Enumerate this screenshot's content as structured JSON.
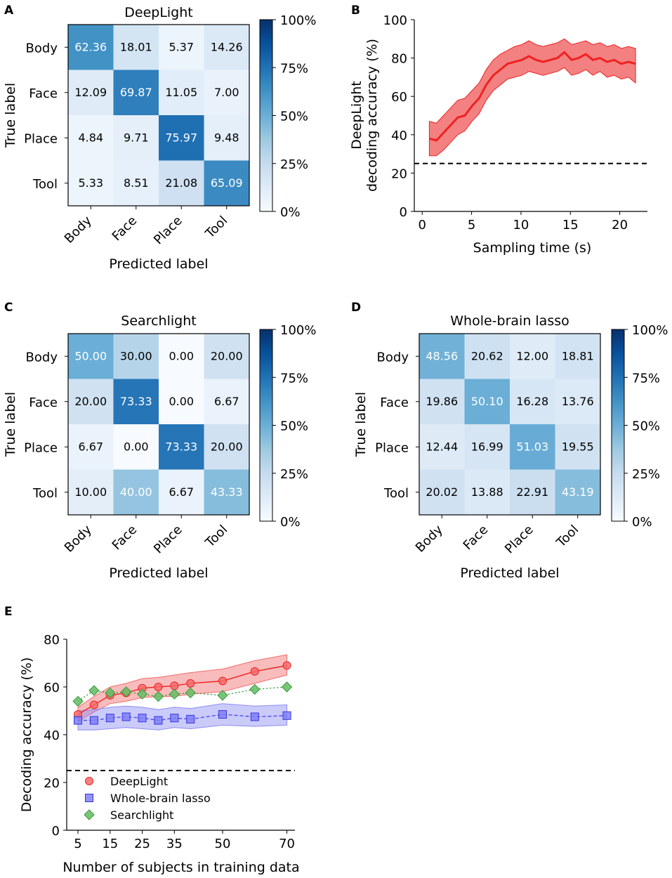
{
  "figure": {
    "panel_letters": [
      "A",
      "B",
      "C",
      "D",
      "E"
    ]
  },
  "colors": {
    "deeplight": "#ee2222",
    "deeplight_band": "#f26b6b",
    "lasso": "#4b4bf0",
    "lasso_band": "#8c8cf5",
    "searchlight": "#3a9a3a",
    "searchlight_marker": "#6cbf6c",
    "cmap_low": "#f7fbff",
    "cmap_high": "#08306b",
    "chance_line": "#000000"
  },
  "chart_data": [
    {
      "id": "A",
      "type": "heatmap",
      "title": "DeepLight",
      "xlabel": "Predicted label",
      "ylabel": "True label",
      "categories": [
        "Body",
        "Face",
        "Place",
        "Tool"
      ],
      "values": [
        [
          62.36,
          18.01,
          5.37,
          14.26
        ],
        [
          12.09,
          69.87,
          11.05,
          7.0
        ],
        [
          4.84,
          9.71,
          75.97,
          9.48
        ],
        [
          5.33,
          8.51,
          21.08,
          65.09
        ]
      ],
      "labels": [
        [
          "62.36",
          "18.01",
          "5.37",
          "14.26"
        ],
        [
          "12.09",
          "69.87",
          "11.05",
          "7.00"
        ],
        [
          "4.84",
          "9.71",
          "75.97",
          "9.48"
        ],
        [
          "5.33",
          "8.51",
          "21.08",
          "65.09"
        ]
      ],
      "colorbar": {
        "range": [
          0,
          100
        ],
        "ticks": [
          0,
          25,
          50,
          75,
          100
        ],
        "tick_labels": [
          "0%",
          "25%",
          "50%",
          "75%",
          "100%"
        ]
      }
    },
    {
      "id": "B",
      "type": "line",
      "title": "",
      "xlabel": "Sampling time (s)",
      "ylabel_lines": [
        "DeepLight",
        "decoding accuracy (%)"
      ],
      "xlim": [
        -0.8,
        22.8
      ],
      "ylim": [
        0,
        100
      ],
      "xticks": [
        0,
        5,
        10,
        15,
        20
      ],
      "yticks": [
        0,
        20,
        40,
        60,
        80,
        100
      ],
      "chance_level": 25,
      "series": [
        {
          "name": "DeepLight",
          "x": [
            0.72,
            1.44,
            2.16,
            2.88,
            3.6,
            4.32,
            5.04,
            5.76,
            6.48,
            7.2,
            7.92,
            8.64,
            9.36,
            10.08,
            10.8,
            11.52,
            12.24,
            12.96,
            13.68,
            14.4,
            15.12,
            15.84,
            16.56,
            17.28,
            18.0,
            18.72,
            19.44,
            20.16,
            20.88,
            21.6
          ],
          "mean": [
            38,
            37,
            41,
            45,
            49,
            50,
            55,
            59,
            66,
            71,
            74,
            77,
            78,
            79,
            81,
            79,
            78,
            79,
            80,
            83,
            79,
            80,
            82,
            79,
            80,
            78,
            79,
            77,
            78,
            77
          ],
          "lower": [
            29,
            29,
            32,
            36,
            40,
            42,
            47,
            51,
            58,
            63,
            66,
            69,
            70,
            71,
            73,
            72,
            71,
            72,
            73,
            75,
            71,
            72,
            74,
            71,
            73,
            70,
            71,
            69,
            70,
            67
          ],
          "upper": [
            47,
            46,
            50,
            54,
            58,
            59,
            63,
            67,
            74,
            79,
            82,
            84,
            86,
            87,
            89,
            87,
            86,
            87,
            88,
            90,
            87,
            88,
            89,
            87,
            88,
            86,
            87,
            85,
            86,
            85
          ]
        }
      ]
    },
    {
      "id": "C",
      "type": "heatmap",
      "title": "Searchlight",
      "xlabel": "Predicted label",
      "ylabel": "True label",
      "categories": [
        "Body",
        "Face",
        "Place",
        "Tool"
      ],
      "values": [
        [
          50.0,
          30.0,
          0.0,
          20.0
        ],
        [
          20.0,
          73.33,
          0.0,
          6.67
        ],
        [
          6.67,
          0.0,
          73.33,
          20.0
        ],
        [
          10.0,
          40.0,
          6.67,
          43.33
        ]
      ],
      "labels": [
        [
          "50.00",
          "30.00",
          "0.00",
          "20.00"
        ],
        [
          "20.00",
          "73.33",
          "0.00",
          "6.67"
        ],
        [
          "6.67",
          "0.00",
          "73.33",
          "20.00"
        ],
        [
          "10.00",
          "40.00",
          "6.67",
          "43.33"
        ]
      ],
      "colorbar": {
        "range": [
          0,
          100
        ],
        "ticks": [
          0,
          25,
          50,
          75,
          100
        ],
        "tick_labels": [
          "0%",
          "25%",
          "50%",
          "75%",
          "100%"
        ]
      }
    },
    {
      "id": "D",
      "type": "heatmap",
      "title": "Whole-brain lasso",
      "xlabel": "Predicted label",
      "ylabel": "True label",
      "categories": [
        "Body",
        "Face",
        "Place",
        "Tool"
      ],
      "values": [
        [
          48.56,
          20.62,
          12.0,
          18.81
        ],
        [
          19.86,
          50.1,
          16.28,
          13.76
        ],
        [
          12.44,
          16.99,
          51.03,
          19.55
        ],
        [
          20.02,
          13.88,
          22.91,
          43.19
        ]
      ],
      "labels": [
        [
          "48.56",
          "20.62",
          "12.00",
          "18.81"
        ],
        [
          "19.86",
          "50.10",
          "16.28",
          "13.76"
        ],
        [
          "12.44",
          "16.99",
          "51.03",
          "19.55"
        ],
        [
          "20.02",
          "13.88",
          "22.91",
          "43.19"
        ]
      ],
      "colorbar": {
        "range": [
          0,
          100
        ],
        "ticks": [
          0,
          25,
          50,
          75,
          100
        ],
        "tick_labels": [
          "0%",
          "25%",
          "50%",
          "75%",
          "100%"
        ]
      }
    },
    {
      "id": "E",
      "type": "line",
      "title": "",
      "xlabel": "Number of subjects in training data",
      "ylabel": "Decoding accuracy (%)",
      "xlim": [
        1.5,
        72.5
      ],
      "ylim": [
        0,
        80
      ],
      "xticks": [
        5,
        15,
        25,
        35,
        50,
        70
      ],
      "yticks": [
        0,
        20,
        40,
        60,
        80
      ],
      "chance_level": 25,
      "legend_position": "lower-left",
      "series": [
        {
          "name": "DeepLight",
          "marker": "circle",
          "linestyle": "solid",
          "x": [
            5,
            10,
            15,
            20,
            25,
            30,
            35,
            40,
            50,
            60,
            70
          ],
          "mean": [
            48.5,
            52.5,
            56.5,
            57.5,
            59.5,
            60.0,
            60.5,
            61.5,
            62.5,
            66.5,
            69.0
          ],
          "lower": [
            45.5,
            49.5,
            53.0,
            54.0,
            55.5,
            56.0,
            56.0,
            57.0,
            58.0,
            61.5,
            65.0
          ],
          "upper": [
            51.5,
            56.0,
            60.0,
            61.5,
            63.5,
            64.0,
            65.0,
            66.0,
            67.5,
            71.0,
            73.5
          ]
        },
        {
          "name": "Whole-brain lasso",
          "marker": "square",
          "linestyle": "dashed",
          "x": [
            5,
            10,
            15,
            20,
            25,
            30,
            35,
            40,
            50,
            60,
            70
          ],
          "mean": [
            46.0,
            46.0,
            47.0,
            47.5,
            47.0,
            46.0,
            47.0,
            46.5,
            48.5,
            47.5,
            48.0
          ],
          "lower": [
            42.0,
            42.0,
            42.5,
            43.0,
            42.5,
            42.0,
            43.0,
            42.5,
            44.0,
            43.5,
            44.0
          ],
          "upper": [
            50.0,
            50.5,
            51.5,
            52.0,
            51.5,
            50.5,
            51.5,
            51.0,
            53.0,
            52.0,
            52.5
          ]
        },
        {
          "name": "Searchlight",
          "marker": "diamond",
          "linestyle": "dotted",
          "x": [
            5,
            10,
            15,
            20,
            25,
            30,
            35,
            40,
            50,
            60,
            70
          ],
          "mean": [
            54.0,
            58.5,
            57.5,
            58.0,
            57.0,
            56.0,
            57.0,
            57.5,
            56.5,
            59.0,
            60.0
          ]
        }
      ]
    }
  ]
}
